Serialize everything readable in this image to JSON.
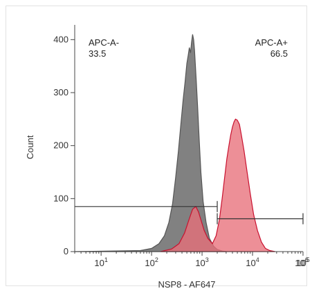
{
  "chart_data": {
    "type": "area",
    "xscale": "log",
    "xlim": [
      3,
      100000
    ],
    "ylim": [
      0,
      420
    ],
    "xlabel": "NSP8 - AF647",
    "ylabel": "Count",
    "yticks": [
      0,
      100,
      200,
      300,
      400
    ],
    "xticks": [
      {
        "value": 10,
        "base": "10",
        "exp": "1"
      },
      {
        "value": 100,
        "base": "10",
        "exp": "2"
      },
      {
        "value": 1000,
        "base": "10",
        "exp": "3"
      },
      {
        "value": 10000,
        "base": "10",
        "exp": "4"
      },
      {
        "value": 100000,
        "base": "10",
        "exp": "5"
      },
      {
        "value": 1000000,
        "base": "10",
        "exp": "6"
      }
    ],
    "grid": false,
    "series": [
      {
        "color": "#555555",
        "fill": "#7a7a7a",
        "x": [
          3,
          60,
          100,
          140,
          180,
          220,
          260,
          300,
          340,
          380,
          420,
          460,
          500,
          530,
          560,
          590,
          620,
          650,
          680,
          710,
          740,
          770,
          820,
          880,
          950,
          1050,
          1200,
          1400,
          1700,
          2000,
          2500,
          3000
        ],
        "y": [
          0,
          2,
          6,
          15,
          30,
          55,
          90,
          140,
          190,
          240,
          285,
          320,
          355,
          370,
          385,
          375,
          395,
          410,
          400,
          380,
          350,
          320,
          270,
          210,
          150,
          95,
          55,
          25,
          10,
          4,
          1,
          0
        ]
      },
      {
        "color": "#c8102e",
        "fill": "#e8707a",
        "x": [
          150,
          250,
          350,
          450,
          550,
          650,
          750,
          850,
          950,
          1100,
          1300,
          1600,
          1900,
          2200,
          2500,
          2800,
          3100,
          3400,
          3700,
          4000,
          4300,
          4600,
          5000,
          5500,
          6000,
          6800,
          7800,
          9000,
          10500,
          12500,
          15000,
          18000,
          22000,
          28000
        ],
        "y": [
          0,
          5,
          15,
          35,
          60,
          80,
          85,
          75,
          60,
          40,
          25,
          15,
          30,
          60,
          100,
          140,
          175,
          200,
          220,
          235,
          245,
          250,
          248,
          240,
          220,
          190,
          150,
          110,
          70,
          40,
          18,
          6,
          2,
          0
        ]
      }
    ],
    "gates": [
      {
        "name": "APC-A-",
        "value": "33.5",
        "x_range": [
          3,
          2000
        ],
        "y_level": 85
      },
      {
        "name": "APC-A+",
        "value": "66.5",
        "x_range": [
          2000,
          100000
        ],
        "y_level": 62
      }
    ]
  }
}
